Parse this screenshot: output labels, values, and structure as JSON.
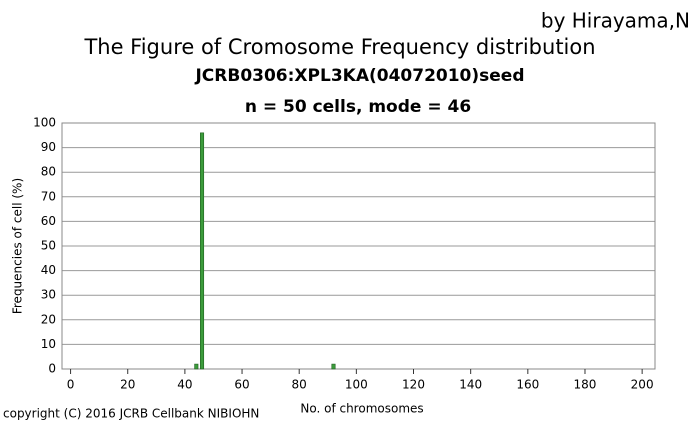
{
  "chart_data": {
    "type": "bar",
    "title": "The Figure of Cromosome Frequency distribution",
    "author": "by Hirayama,N",
    "subtitle": "JCRB0306:XPL3KA(04072010)seed",
    "subtitle2": "n = 50 cells, mode = 46",
    "x_label": "No. of chromosomes",
    "y_label": "Frequencies of cell (%)",
    "copyright": "copyright (C) 2016 JCRB Cellbank NIBIOHN",
    "x": [
      44,
      46,
      92
    ],
    "values": [
      2,
      96,
      2
    ],
    "color": "#3c9c3c",
    "xlim": [
      -3,
      204.5
    ],
    "xticks": [
      0,
      20,
      40,
      60,
      80,
      100,
      120,
      140,
      160,
      180,
      200
    ],
    "ylim": [
      0,
      100
    ],
    "yticks": [
      0,
      10,
      20,
      30,
      40,
      50,
      60,
      70,
      80,
      90,
      100
    ],
    "grid": true
  }
}
